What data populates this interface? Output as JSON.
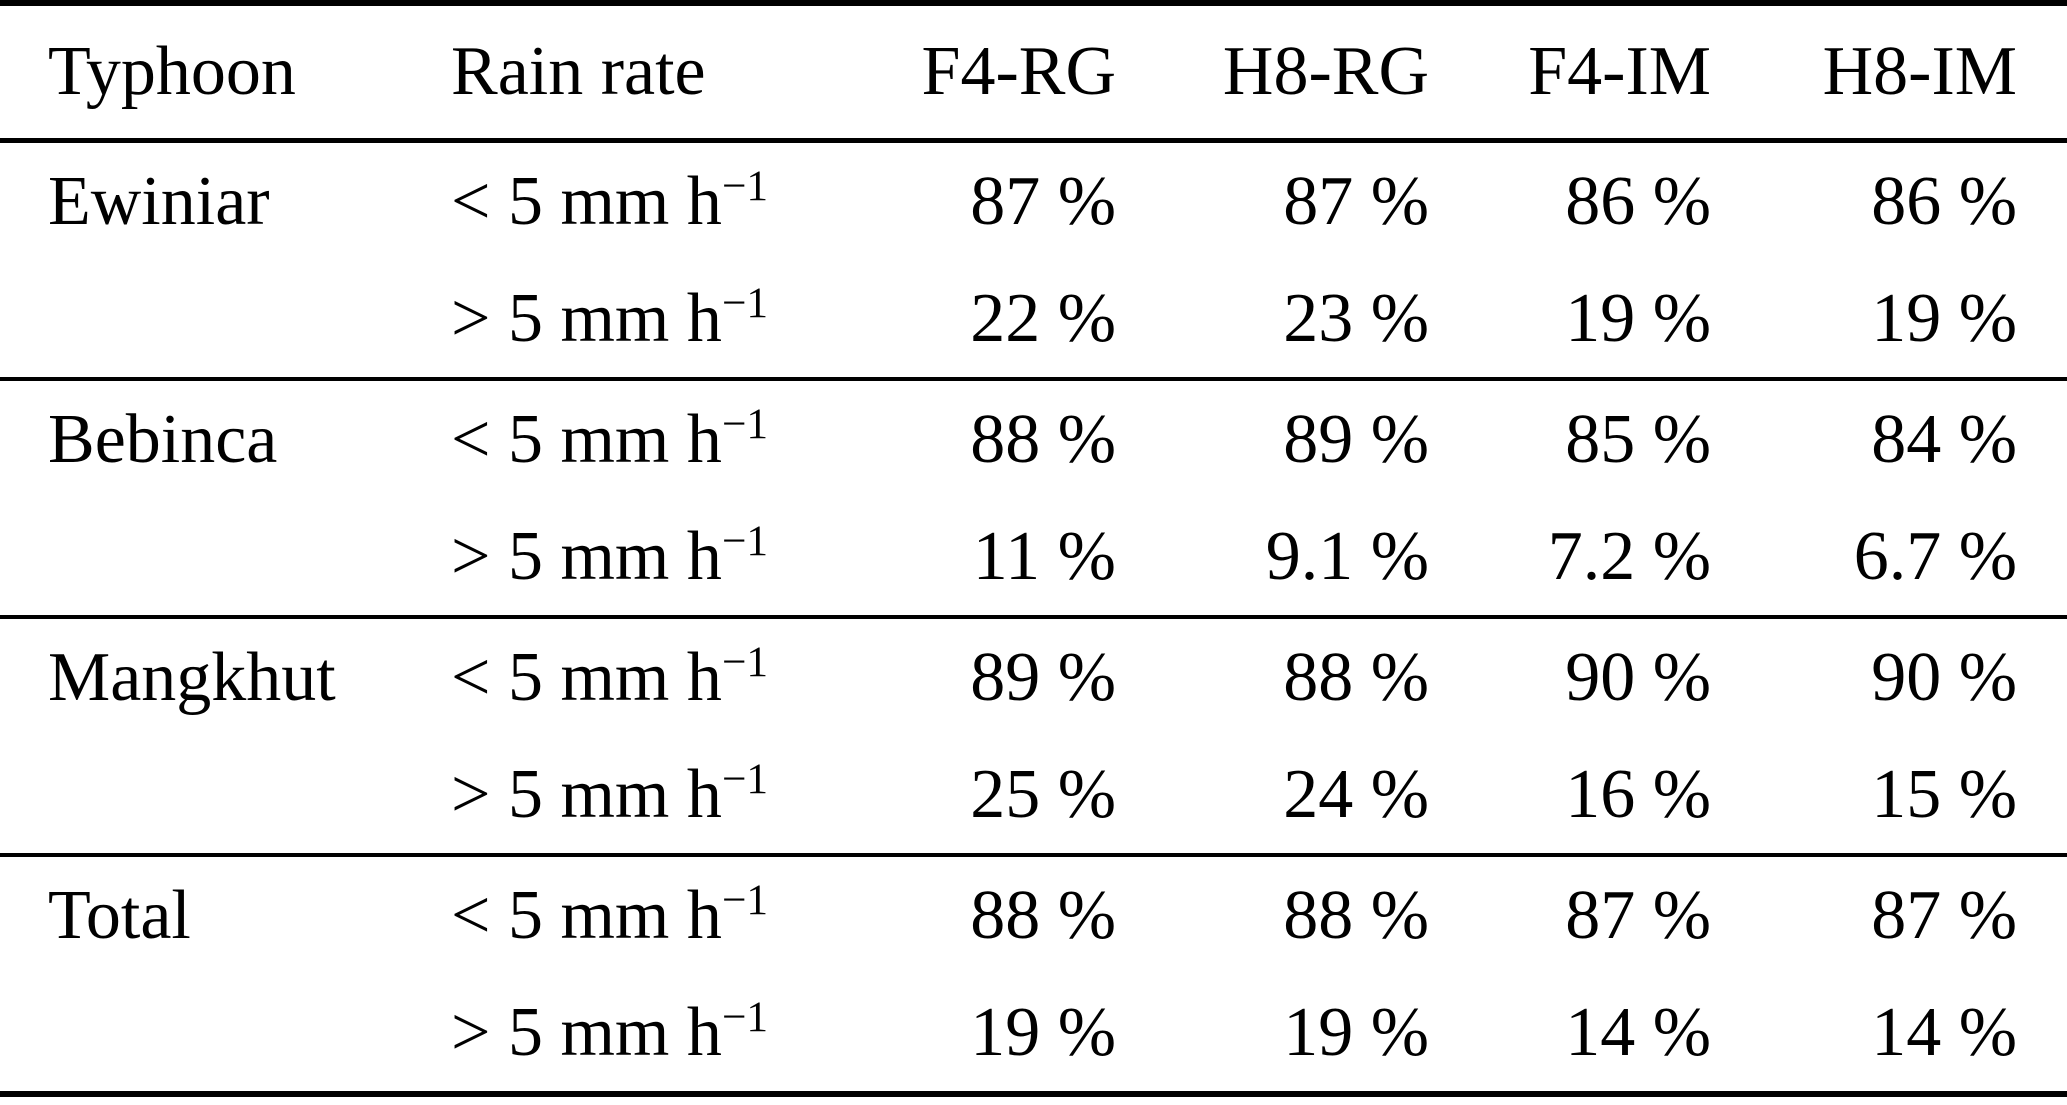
{
  "table": {
    "columns": [
      "Typhoon",
      "Rain rate",
      "F4-RG",
      "H8-RG",
      "F4-IM",
      "H8-IM"
    ],
    "rate_sup": "−1",
    "sections": [
      {
        "typhoon": "Ewiniar",
        "rows": [
          {
            "rate_prefix": "< 5 mm h",
            "values": [
              "87 %",
              "87 %",
              "86 %",
              "86 %"
            ]
          },
          {
            "rate_prefix": "> 5 mm h",
            "values": [
              "22 %",
              "23 %",
              "19 %",
              "19 %"
            ]
          }
        ]
      },
      {
        "typhoon": "Bebinca",
        "rows": [
          {
            "rate_prefix": "< 5 mm h",
            "values": [
              "88 %",
              "89 %",
              "85 %",
              "84 %"
            ]
          },
          {
            "rate_prefix": "> 5 mm h",
            "values": [
              "11 %",
              "9.1 %",
              "7.2 %",
              "6.7 %"
            ]
          }
        ]
      },
      {
        "typhoon": "Mangkhut",
        "rows": [
          {
            "rate_prefix": "< 5 mm h",
            "values": [
              "89 %",
              "88 %",
              "90 %",
              "90 %"
            ]
          },
          {
            "rate_prefix": "> 5 mm h",
            "values": [
              "25 %",
              "24 %",
              "16 %",
              "15 %"
            ]
          }
        ]
      },
      {
        "typhoon": "Total",
        "rows": [
          {
            "rate_prefix": "< 5 mm h",
            "values": [
              "88 %",
              "88 %",
              "87 %",
              "87 %"
            ]
          },
          {
            "rate_prefix": "> 5 mm h",
            "values": [
              "19 %",
              "19 %",
              "14 %",
              "14 %"
            ]
          }
        ]
      }
    ]
  }
}
